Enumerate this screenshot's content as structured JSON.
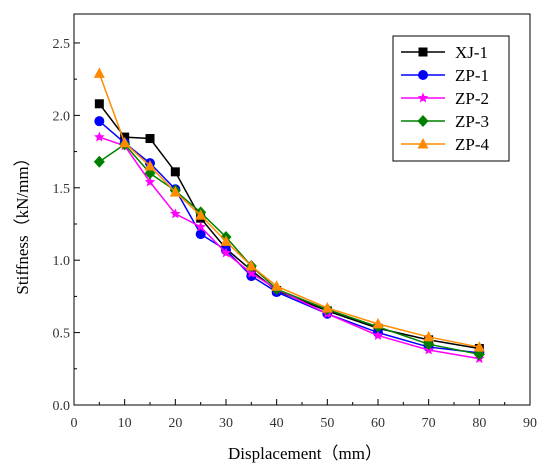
{
  "chart_data": {
    "type": "line",
    "xlabel": "Displacement（mm）",
    "ylabel": "Stiffness（kN/mm）",
    "xlim": [
      0,
      90
    ],
    "ylim": [
      0.0,
      2.7
    ],
    "xticks": [
      0,
      10,
      20,
      30,
      40,
      50,
      60,
      70,
      80,
      90
    ],
    "yticks": [
      0.0,
      0.5,
      1.0,
      1.5,
      2.0,
      2.5
    ],
    "xtick_labels": [
      "0",
      "10",
      "20",
      "30",
      "40",
      "50",
      "60",
      "70",
      "80",
      "90"
    ],
    "ytick_labels": [
      "0.0",
      "0.5",
      "1.0",
      "1.5",
      "2.0",
      "2.5"
    ],
    "grid": false,
    "legend_position": "top-right",
    "series": [
      {
        "name": "XJ-1",
        "color": "#000000",
        "marker": "square",
        "x": [
          5,
          10,
          15,
          20,
          25,
          30,
          35,
          40,
          50,
          60,
          70,
          80
        ],
        "y": [
          2.08,
          1.85,
          1.84,
          1.61,
          1.29,
          1.08,
          0.93,
          0.79,
          0.65,
          0.53,
          0.45,
          0.39
        ]
      },
      {
        "name": "ZP-1",
        "color": "#0000FF",
        "marker": "circle",
        "x": [
          5,
          10,
          15,
          20,
          25,
          30,
          35,
          40,
          50,
          60,
          70,
          80
        ],
        "y": [
          1.96,
          1.81,
          1.67,
          1.49,
          1.18,
          1.07,
          0.89,
          0.78,
          0.63,
          0.5,
          0.4,
          0.36
        ]
      },
      {
        "name": "ZP-2",
        "color": "#FF00FF",
        "marker": "star",
        "x": [
          5,
          10,
          15,
          20,
          25,
          30,
          35,
          40,
          50,
          60,
          70,
          80
        ],
        "y": [
          1.85,
          1.79,
          1.54,
          1.32,
          1.23,
          1.05,
          0.91,
          0.8,
          0.63,
          0.48,
          0.38,
          0.32
        ]
      },
      {
        "name": "ZP-3",
        "color": "#008000",
        "marker": "diamond",
        "x": [
          5,
          10,
          15,
          20,
          25,
          30,
          35,
          40,
          50,
          60,
          70,
          80
        ],
        "y": [
          1.68,
          1.8,
          1.6,
          1.48,
          1.33,
          1.16,
          0.96,
          0.8,
          0.66,
          0.54,
          0.42,
          0.35
        ]
      },
      {
        "name": "ZP-4",
        "color": "#FF8C00",
        "marker": "triangle",
        "x": [
          5,
          10,
          15,
          20,
          25,
          30,
          35,
          40,
          50,
          60,
          70,
          80
        ],
        "y": [
          2.29,
          1.81,
          1.65,
          1.47,
          1.31,
          1.13,
          0.96,
          0.82,
          0.67,
          0.56,
          0.47,
          0.4
        ]
      }
    ]
  }
}
